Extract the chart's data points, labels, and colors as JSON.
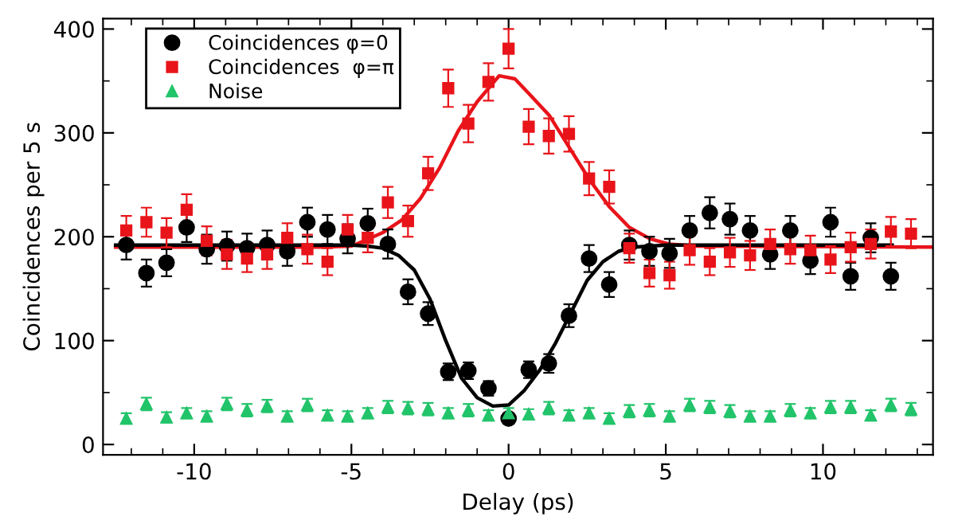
{
  "chart_data": {
    "type": "scatter",
    "xlabel": "Delay (ps)",
    "ylabel": "Coincidences per 5 s",
    "xlim": [
      -12.9,
      13.5
    ],
    "ylim": [
      -10,
      410
    ],
    "xticks": [
      -10,
      -5,
      0,
      5,
      10
    ],
    "yticks": [
      0,
      100,
      200,
      300,
      400
    ],
    "grid": false,
    "legend": "top left",
    "series": [
      {
        "type": "line",
        "color": "#e8141a",
        "x": [
          -12.5,
          -6,
          -5,
          -4.6,
          -4,
          -3.4,
          -2.8,
          -2.2,
          -1.6,
          -1,
          -0.3,
          0.2,
          0.64,
          1.29,
          1.93,
          2.57,
          3.2,
          3.84,
          4.5,
          5.1,
          6,
          13.5
        ],
        "values": [
          190,
          190,
          191,
          196,
          204,
          216,
          237,
          266,
          302,
          330,
          355,
          352,
          338,
          317,
          286,
          255,
          229,
          209,
          198,
          193,
          191,
          190
        ]
      },
      {
        "type": "line",
        "color": "#000000",
        "x": [
          -12.5,
          -5,
          -4.5,
          -4,
          -3.5,
          -3,
          -2.5,
          -2,
          -1.5,
          -1,
          -0.5,
          0,
          0.5,
          1,
          1.5,
          2,
          2.5,
          3,
          3.5,
          4,
          5,
          12.2
        ],
        "values": [
          192,
          192,
          191,
          189,
          182,
          168,
          140,
          100,
          64,
          45,
          37,
          38,
          52,
          72,
          98,
          128,
          158,
          176,
          186,
          190,
          192,
          192
        ]
      },
      {
        "name": "Coincidences φ=0",
        "color": "#000000",
        "marker": "circle",
        "x": [
          -12.16,
          -11.52,
          -10.88,
          -10.24,
          -9.6,
          -8.96,
          -8.32,
          -7.68,
          -7.04,
          -6.4,
          -5.76,
          -5.12,
          -4.48,
          -3.84,
          -3.2,
          -2.56,
          -1.92,
          -1.28,
          -0.64,
          0,
          0.64,
          1.28,
          1.92,
          2.56,
          3.2,
          3.84,
          4.48,
          5.12,
          5.76,
          6.4,
          7.04,
          7.68,
          8.32,
          8.96,
          9.6,
          10.24,
          10.88,
          11.52,
          12.16
        ],
        "values": [
          192,
          165,
          175,
          209,
          188,
          191,
          189,
          192,
          186,
          214,
          207,
          198,
          213,
          193,
          147,
          126,
          70,
          71,
          54,
          25,
          72,
          78,
          124,
          179,
          154,
          192,
          186,
          184,
          206,
          223,
          217,
          206,
          183,
          206,
          177,
          214,
          162,
          199,
          162
        ],
        "errors": [
          14,
          13,
          13,
          14,
          14,
          14,
          14,
          14,
          14,
          14,
          14,
          14,
          14,
          14,
          12,
          11,
          8,
          8,
          7,
          5,
          8,
          9,
          11,
          13,
          12,
          14,
          14,
          14,
          14,
          15,
          15,
          14,
          14,
          14,
          13,
          14,
          13,
          14,
          13
        ]
      },
      {
        "name": "Coincidences  φ=π",
        "color": "#e8141a",
        "marker": "square",
        "x": [
          -12.16,
          -11.52,
          -10.88,
          -10.24,
          -9.6,
          -8.96,
          -8.32,
          -7.68,
          -7.04,
          -6.4,
          -5.76,
          -5.12,
          -4.48,
          -3.84,
          -3.2,
          -2.56,
          -1.92,
          -1.28,
          -0.64,
          0,
          0.64,
          1.28,
          1.92,
          2.56,
          3.2,
          3.84,
          4.48,
          5.12,
          5.76,
          6.4,
          7.04,
          7.68,
          8.32,
          8.96,
          9.6,
          10.24,
          10.88,
          11.52,
          12.16,
          12.8
        ],
        "values": [
          206,
          214,
          204,
          226,
          196,
          183,
          179,
          183,
          199,
          188,
          176,
          207,
          199,
          233,
          215,
          261,
          343,
          309,
          349,
          381,
          306,
          297,
          299,
          256,
          248,
          189,
          165,
          163,
          187,
          176,
          185,
          182,
          193,
          188,
          187,
          178,
          190,
          193,
          205,
          203
        ],
        "errors": [
          14,
          14,
          14,
          15,
          14,
          14,
          13,
          14,
          14,
          14,
          13,
          14,
          14,
          15,
          15,
          16,
          18,
          18,
          18,
          19,
          17,
          17,
          17,
          16,
          16,
          14,
          13,
          13,
          14,
          13,
          14,
          14,
          14,
          14,
          14,
          13,
          14,
          14,
          14,
          14
        ]
      },
      {
        "name": "Noise",
        "color": "#22c46a",
        "marker": "triangle",
        "x": [
          -12.16,
          -11.52,
          -10.88,
          -10.24,
          -9.6,
          -8.96,
          -8.32,
          -7.68,
          -7.04,
          -6.4,
          -5.76,
          -5.12,
          -4.48,
          -3.84,
          -3.2,
          -2.56,
          -1.92,
          -1.28,
          -0.64,
          0,
          0.64,
          1.28,
          1.92,
          2.56,
          3.2,
          3.84,
          4.48,
          5.12,
          5.76,
          6.4,
          7.04,
          7.68,
          8.32,
          8.96,
          9.6,
          10.24,
          10.88,
          11.52,
          12.16,
          12.8
        ],
        "values": [
          25,
          39,
          26,
          30,
          27,
          39,
          33,
          37,
          27,
          38,
          28,
          27,
          30,
          36,
          35,
          34,
          30,
          33,
          28,
          30,
          29,
          35,
          28,
          30,
          25,
          32,
          33,
          27,
          38,
          36,
          32,
          27,
          27,
          33,
          30,
          36,
          36,
          28,
          38,
          34
        ],
        "errors": [
          5,
          6,
          5,
          5,
          5,
          6,
          6,
          6,
          5,
          6,
          5,
          5,
          5,
          6,
          6,
          6,
          5,
          6,
          5,
          5,
          5,
          6,
          5,
          5,
          5,
          6,
          6,
          5,
          6,
          6,
          6,
          5,
          5,
          6,
          5,
          6,
          6,
          5,
          6,
          6
        ]
      }
    ]
  }
}
